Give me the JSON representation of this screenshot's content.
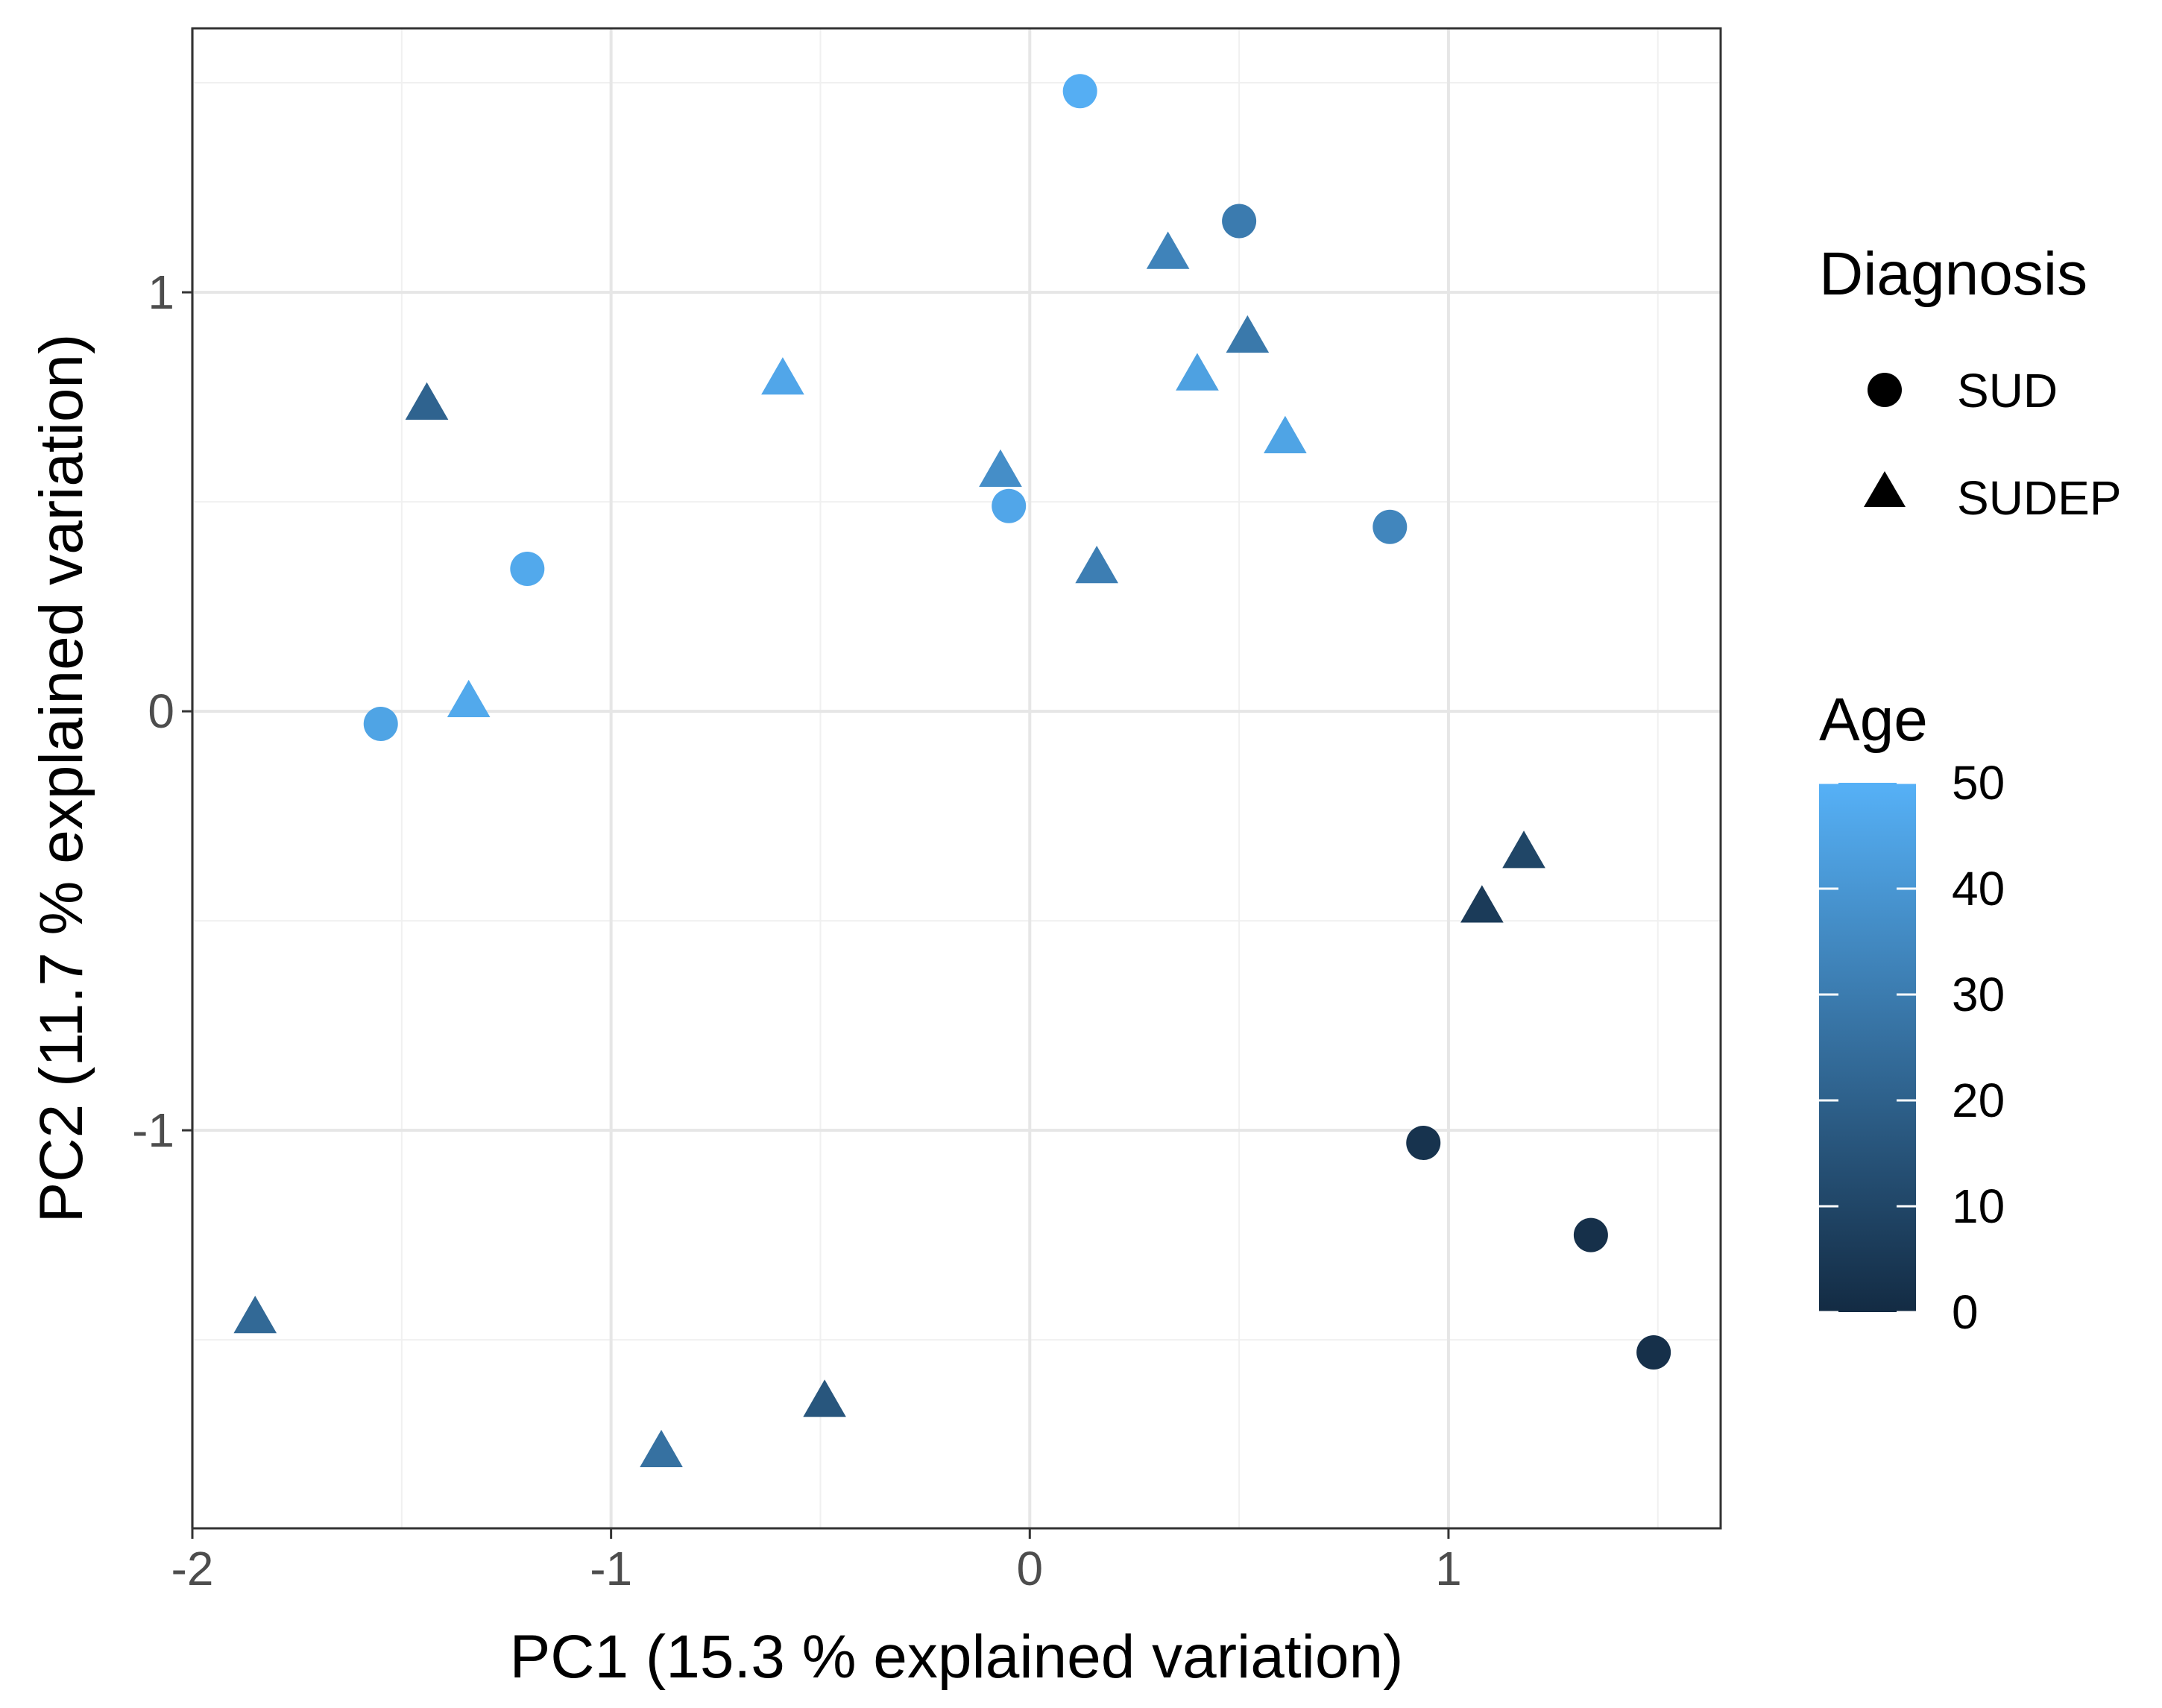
{
  "chart_data": {
    "type": "scatter",
    "xlabel": "PC1 (15.3 % explained variation)",
    "ylabel": "PC2 (11.7 % explained variation)",
    "xlim": [
      -2.0,
      1.65
    ],
    "ylim": [
      -1.95,
      1.63
    ],
    "x_ticks": [
      {
        "value": -2,
        "label": "-2"
      },
      {
        "value": -1,
        "label": "-1"
      },
      {
        "value": 0,
        "label": "0"
      },
      {
        "value": 1,
        "label": "1"
      }
    ],
    "y_ticks": [
      {
        "value": -1,
        "label": "-1"
      },
      {
        "value": 0,
        "label": "0"
      },
      {
        "value": 1,
        "label": "1"
      }
    ],
    "grid": true,
    "legend": {
      "shape_title": "Diagnosis",
      "shape_items": [
        {
          "label": "SUD",
          "shape": "circle"
        },
        {
          "label": "SUDEP",
          "shape": "triangle"
        }
      ],
      "color_title": "Age",
      "color_range": [
        0,
        50
      ],
      "color_low": "#132B43",
      "color_high": "#56B1F7",
      "color_ticks": [
        {
          "value": 50,
          "label": "50"
        },
        {
          "value": 40,
          "label": "40"
        },
        {
          "value": 30,
          "label": "30"
        },
        {
          "value": 20,
          "label": "20"
        },
        {
          "value": 10,
          "label": "10"
        },
        {
          "value": 0,
          "label": "0"
        }
      ],
      "placement": "right"
    },
    "points": [
      {
        "x": 0.12,
        "y": 1.48,
        "group": "SUD",
        "age": 49
      },
      {
        "x": 0.5,
        "y": 1.17,
        "group": "SUD",
        "age": 30
      },
      {
        "x": 0.86,
        "y": 0.44,
        "group": "SUD",
        "age": 34
      },
      {
        "x": -0.05,
        "y": 0.49,
        "group": "SUD",
        "age": 46
      },
      {
        "x": -1.2,
        "y": 0.34,
        "group": "SUD",
        "age": 47
      },
      {
        "x": -1.55,
        "y": -0.03,
        "group": "SUD",
        "age": 45
      },
      {
        "x": 0.94,
        "y": -1.03,
        "group": "SUD",
        "age": 3
      },
      {
        "x": 1.34,
        "y": -1.25,
        "group": "SUD",
        "age": 2
      },
      {
        "x": 1.49,
        "y": -1.53,
        "group": "SUD",
        "age": 2
      },
      {
        "x": 0.33,
        "y": 1.09,
        "group": "SUDEP",
        "age": 33
      },
      {
        "x": 0.52,
        "y": 0.89,
        "group": "SUDEP",
        "age": 29
      },
      {
        "x": 0.4,
        "y": 0.8,
        "group": "SUDEP",
        "age": 44
      },
      {
        "x": 0.61,
        "y": 0.65,
        "group": "SUDEP",
        "age": 45
      },
      {
        "x": -0.07,
        "y": 0.57,
        "group": "SUDEP",
        "age": 37
      },
      {
        "x": 0.16,
        "y": 0.34,
        "group": "SUDEP",
        "age": 31
      },
      {
        "x": -0.59,
        "y": 0.79,
        "group": "SUDEP",
        "age": 46
      },
      {
        "x": -1.44,
        "y": 0.73,
        "group": "SUDEP",
        "age": 21
      },
      {
        "x": -1.34,
        "y": 0.02,
        "group": "SUDEP",
        "age": 47
      },
      {
        "x": 1.08,
        "y": -0.47,
        "group": "SUDEP",
        "age": 6
      },
      {
        "x": 1.18,
        "y": -0.34,
        "group": "SUDEP",
        "age": 10
      },
      {
        "x": -1.85,
        "y": -1.45,
        "group": "SUDEP",
        "age": 23
      },
      {
        "x": -0.88,
        "y": -1.77,
        "group": "SUDEP",
        "age": 26
      },
      {
        "x": -0.49,
        "y": -1.65,
        "group": "SUDEP",
        "age": 16
      }
    ]
  }
}
